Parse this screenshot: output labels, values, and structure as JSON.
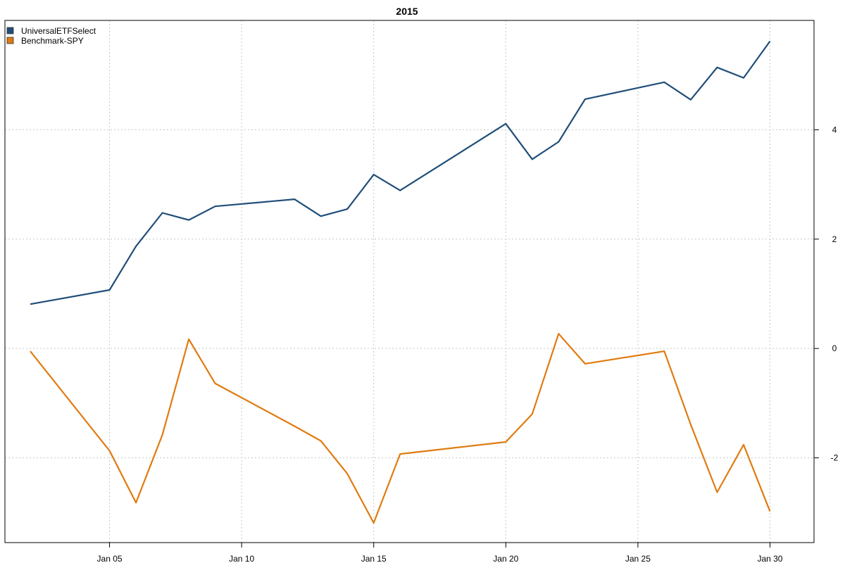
{
  "chart_data": {
    "type": "line",
    "title": "2015",
    "xlabel": "",
    "ylabel": "",
    "x": [
      "2015-01-02",
      "2015-01-05",
      "2015-01-06",
      "2015-01-07",
      "2015-01-08",
      "2015-01-09",
      "2015-01-12",
      "2015-01-13",
      "2015-01-14",
      "2015-01-15",
      "2015-01-16",
      "2015-01-20",
      "2015-01-21",
      "2015-01-22",
      "2015-01-23",
      "2015-01-26",
      "2015-01-27",
      "2015-01-28",
      "2015-01-29",
      "2015-01-30"
    ],
    "x_range": [
      "2015-01-02",
      "2015-01-31"
    ],
    "x_ticks": [
      {
        "date": "2015-01-05",
        "label": "Jan 05"
      },
      {
        "date": "2015-01-10",
        "label": "Jan 10"
      },
      {
        "date": "2015-01-15",
        "label": "Jan 15"
      },
      {
        "date": "2015-01-20",
        "label": "Jan 20"
      },
      {
        "date": "2015-01-25",
        "label": "Jan 25"
      },
      {
        "date": "2015-01-30",
        "label": "Jan 30"
      }
    ],
    "y_ticks": [
      {
        "value": -2,
        "label": "-2"
      },
      {
        "value": 0,
        "label": "0"
      },
      {
        "value": 2,
        "label": "2"
      },
      {
        "value": 4,
        "label": "4"
      }
    ],
    "ylim": [
      -3.55,
      6.0
    ],
    "y_axis_position": "right",
    "grid": true,
    "legend_position": "top-left",
    "series": [
      {
        "name": "UniversalETFSelect",
        "color": "#1f4e79",
        "values": [
          0.81,
          1.07,
          1.87,
          2.48,
          2.35,
          2.6,
          2.73,
          2.42,
          2.55,
          3.18,
          2.89,
          4.11,
          3.46,
          3.78,
          4.56,
          4.87,
          4.55,
          5.14,
          4.95,
          5.62
        ]
      },
      {
        "name": "Benchmark-SPY",
        "color": "#e07b10",
        "values": [
          -0.05,
          -1.87,
          -2.82,
          -1.58,
          0.17,
          -0.64,
          -1.42,
          -1.69,
          -2.29,
          -3.19,
          -1.93,
          -1.71,
          -1.2,
          0.27,
          -0.28,
          -0.05,
          -1.39,
          -2.63,
          -1.76,
          -2.98
        ]
      }
    ]
  }
}
